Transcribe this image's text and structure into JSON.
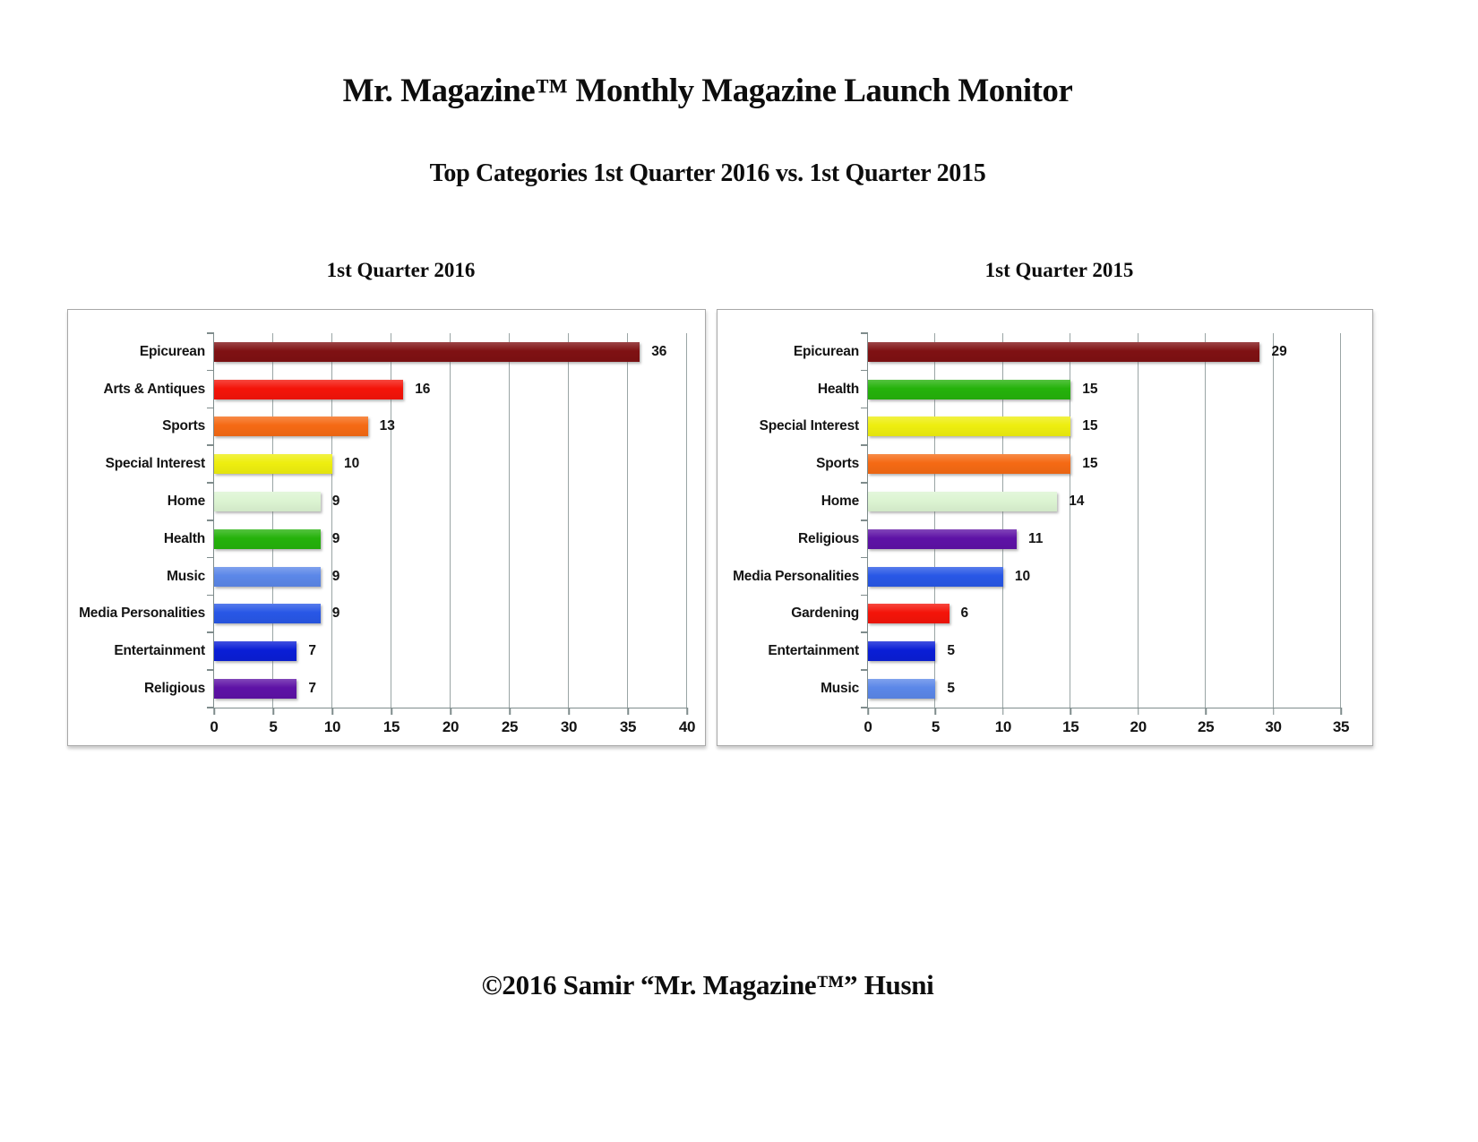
{
  "page": {
    "title": "Mr. Magazine™ Monthly Magazine Launch Monitor",
    "subtitle": "Top Categories 1st Quarter 2016 vs. 1st Quarter 2015",
    "footer": "©2016 Samir “Mr. Magazine™” Husni"
  },
  "colors": {
    "grid": "#9aa5a5",
    "axis": "#7f8c8c",
    "panel_border": "#a8a8a8",
    "text": "#141414"
  },
  "chart_data": [
    {
      "type": "bar",
      "orientation": "horizontal",
      "title": "1st Quarter 2016",
      "categories": [
        "Epicurean",
        "Arts & Antiques",
        "Sports",
        "Special Interest",
        "Home",
        "Health",
        "Music",
        "Media Personalities",
        "Entertainment",
        "Religious"
      ],
      "values": [
        36,
        16,
        13,
        10,
        9,
        9,
        9,
        9,
        7,
        7
      ],
      "bar_colors": [
        "#7f1113",
        "#f41409",
        "#f56a14",
        "#eeee0f",
        "#dcf4d2",
        "#25b20b",
        "#5b87e8",
        "#2857e6",
        "#0a1ed6",
        "#5e12a6"
      ],
      "xlim": [
        0,
        40
      ],
      "xticks": [
        0,
        5,
        10,
        15,
        20,
        25,
        30,
        35,
        40
      ],
      "grid": true,
      "legend": false
    },
    {
      "type": "bar",
      "orientation": "horizontal",
      "title": "1st Quarter 2015",
      "categories": [
        "Epicurean",
        "Health",
        "Special Interest",
        "Sports",
        "Home",
        "Religious",
        "Media Personalities",
        "Gardening",
        "Entertainment",
        "Music"
      ],
      "values": [
        29,
        15,
        15,
        15,
        14,
        11,
        10,
        6,
        5,
        5
      ],
      "bar_colors": [
        "#7f1113",
        "#25b20b",
        "#eeee0f",
        "#f56a14",
        "#dcf4d2",
        "#5e12a6",
        "#2857e6",
        "#f41409",
        "#0a1ed6",
        "#5b87e8"
      ],
      "xlim": [
        0,
        35
      ],
      "xticks": [
        0,
        5,
        10,
        15,
        20,
        25,
        30,
        35
      ],
      "grid": true,
      "legend": false
    }
  ]
}
